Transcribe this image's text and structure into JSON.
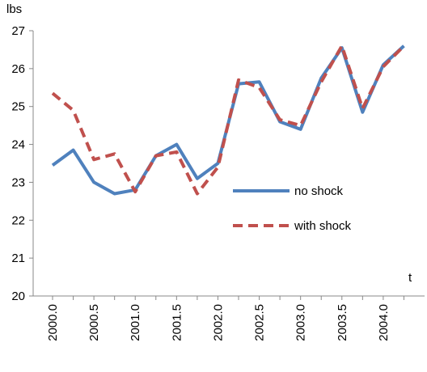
{
  "chart_data": {
    "type": "line",
    "y_label": "lbs",
    "x_label": "t",
    "categories": [
      "2000.0",
      null,
      "2000.5",
      null,
      "2001.0",
      null,
      "2001.5",
      null,
      "2002.0",
      null,
      "2002.5",
      null,
      "2003.0",
      null,
      "2003.5",
      null,
      "2004.0",
      null
    ],
    "series": [
      {
        "name": "no shock",
        "color": "#4f81bd",
        "dash": false,
        "values": [
          23.45,
          23.85,
          23.0,
          22.7,
          22.8,
          23.7,
          24.0,
          23.1,
          23.5,
          25.6,
          25.65,
          24.6,
          24.4,
          25.75,
          26.55,
          24.85,
          26.1,
          26.6
        ]
      },
      {
        "name": "with shock",
        "color": "#c0504d",
        "dash": true,
        "values": [
          25.35,
          24.9,
          23.6,
          23.75,
          22.75,
          23.7,
          23.8,
          22.7,
          23.4,
          25.7,
          25.5,
          24.65,
          24.5,
          25.65,
          26.6,
          24.95,
          26.05,
          26.6
        ]
      }
    ],
    "ylim": [
      20,
      27
    ],
    "yticks": [
      20,
      21,
      22,
      23,
      24,
      25,
      26,
      27
    ]
  }
}
